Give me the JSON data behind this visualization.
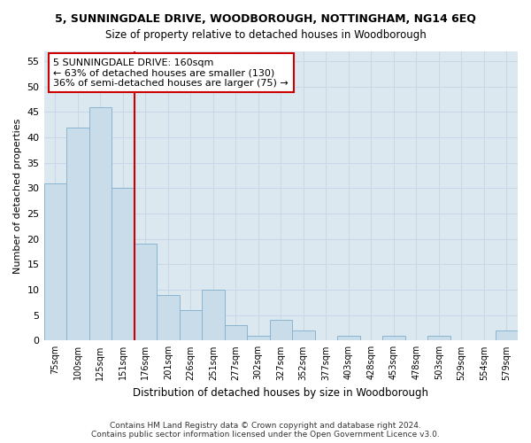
{
  "title1": "5, SUNNINGDALE DRIVE, WOODBOROUGH, NOTTINGHAM, NG14 6EQ",
  "title2": "Size of property relative to detached houses in Woodborough",
  "xlabel": "Distribution of detached houses by size in Woodborough",
  "ylabel": "Number of detached properties",
  "categories": [
    "75sqm",
    "100sqm",
    "125sqm",
    "151sqm",
    "176sqm",
    "201sqm",
    "226sqm",
    "251sqm",
    "277sqm",
    "302sqm",
    "327sqm",
    "352sqm",
    "377sqm",
    "403sqm",
    "428sqm",
    "453sqm",
    "478sqm",
    "503sqm",
    "529sqm",
    "554sqm",
    "579sqm"
  ],
  "values": [
    31,
    42,
    46,
    30,
    19,
    9,
    6,
    10,
    3,
    1,
    4,
    2,
    0,
    1,
    0,
    1,
    0,
    1,
    0,
    0,
    2
  ],
  "bar_color": "#c9dcea",
  "bar_edgecolor": "#8ab4d0",
  "bar_width": 1.0,
  "property_line_x": 3.5,
  "annotation_text": "5 SUNNINGDALE DRIVE: 160sqm\n← 63% of detached houses are smaller (130)\n36% of semi-detached houses are larger (75) →",
  "annotation_box_color": "#ffffff",
  "annotation_box_edgecolor": "#cc0000",
  "vline_color": "#cc0000",
  "ylim": [
    0,
    57
  ],
  "yticks": [
    0,
    5,
    10,
    15,
    20,
    25,
    30,
    35,
    40,
    45,
    50,
    55
  ],
  "footnote": "Contains HM Land Registry data © Crown copyright and database right 2024.\nContains public sector information licensed under the Open Government Licence v3.0.",
  "grid_color": "#c8d8e8",
  "background_color": "#dce8f0",
  "fig_background": "#ffffff"
}
